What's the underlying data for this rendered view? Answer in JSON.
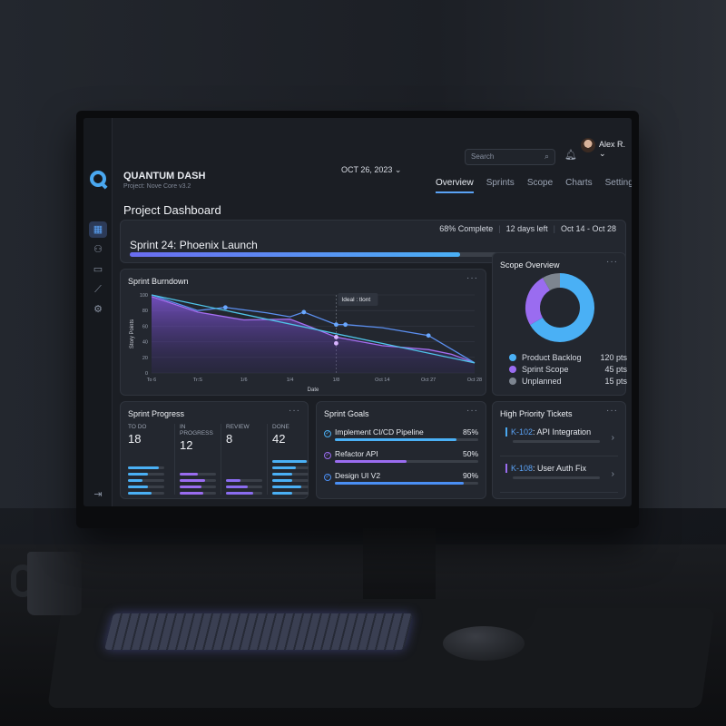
{
  "app": {
    "brand": "QUANTUM DASH",
    "project": "Project: Nove Core v3.2",
    "date": "OCT 26, 2023 ⌄"
  },
  "header": {
    "search_placeholder": "Search",
    "user": "Alex R. ⌄",
    "tabs": [
      {
        "label": "Overview",
        "active": true
      },
      {
        "label": "Sprints"
      },
      {
        "label": "Scope"
      },
      {
        "label": "Charts"
      },
      {
        "label": "Settings"
      }
    ]
  },
  "page_title": "Project Dashboard",
  "sprint": {
    "name": "Sprint 24: Phoenix Launch",
    "complete": "68% Complete",
    "days_left": "12 days left",
    "range": "Oct 14 - Oct 28",
    "progress": 0.68
  },
  "burndown": {
    "title": "Sprint Burndown",
    "more": "···",
    "tooltip": "Ideal : tlont"
  },
  "chart_data": {
    "type": "line",
    "title": "Sprint Burndown",
    "xlabel": "Date",
    "ylabel": "Story Points",
    "categories": [
      "To 6",
      "Tr:S",
      "1/6",
      "1/4",
      "1/8",
      "Oct 14",
      "Oct 27",
      "Oct 28"
    ],
    "y_ticks": [
      0,
      20,
      40,
      60,
      80,
      100
    ],
    "ylim": [
      0,
      100
    ],
    "grid": true,
    "series": [
      {
        "key": "ideal",
        "color": "#4fc3e8",
        "points": [
          [
            0,
            100
          ],
          [
            7,
            13
          ]
        ]
      },
      {
        "key": "actual",
        "color": "#5b8ff0",
        "points": [
          [
            0,
            100
          ],
          [
            1,
            80
          ],
          [
            1.6,
            84
          ],
          [
            2.5,
            77
          ],
          [
            3,
            72
          ],
          [
            3.3,
            78
          ],
          [
            4,
            62
          ],
          [
            4.2,
            62
          ],
          [
            5,
            58
          ],
          [
            6,
            48
          ],
          [
            7,
            13
          ]
        ],
        "markers": [
          [
            1.6,
            84
          ],
          [
            3.3,
            78
          ],
          [
            4,
            62
          ],
          [
            4.2,
            62
          ],
          [
            6,
            48
          ]
        ]
      },
      {
        "key": "scope",
        "color": "#a56ef0",
        "area": true,
        "points": [
          [
            0,
            98
          ],
          [
            1,
            78
          ],
          [
            2,
            68
          ],
          [
            3,
            69
          ],
          [
            3.4,
            60
          ],
          [
            4,
            46
          ],
          [
            5,
            35
          ],
          [
            6,
            30
          ],
          [
            6.5,
            24
          ],
          [
            7,
            13
          ]
        ],
        "markers": [
          [
            4,
            46
          ],
          [
            4,
            38
          ]
        ]
      }
    ]
  },
  "scope": {
    "title": "Scope Overview",
    "more": "···",
    "items": [
      {
        "label": "Product Backlog",
        "value": "120 pts",
        "pts": 120,
        "color": "#4ab0f5"
      },
      {
        "label": "Sprint Scope",
        "value": "45 pts",
        "pts": 45,
        "color": "#9a6cf0"
      },
      {
        "label": "Unplanned",
        "value": "15 pts",
        "pts": 15,
        "color": "#7d8590"
      }
    ]
  },
  "progress": {
    "title": "Sprint Progress",
    "more": "···",
    "columns": [
      {
        "label": "TO DO",
        "count": "18",
        "color": "#4ab0f5",
        "bars": [
          0.85,
          0.55,
          0.4,
          0.55,
          0.65
        ]
      },
      {
        "label": "IN PROGRESS",
        "count": "12",
        "color": "#9a6cf0",
        "bars": [
          0.5,
          0.7,
          0.6,
          0.65
        ]
      },
      {
        "label": "REVIEW",
        "count": "8",
        "color": "#8a6cf0",
        "bars": [
          0.4,
          0.6,
          0.75
        ]
      },
      {
        "label": "DONE",
        "count": "42",
        "color": "#4ab0f5",
        "bars": [
          0.95,
          0.65,
          0.55,
          0.55,
          0.8,
          0.55
        ]
      }
    ]
  },
  "goals": {
    "title": "Sprint Goals",
    "more": "···",
    "items": [
      {
        "label": "Implement CI/CD Pipeline",
        "pct": "85%",
        "value": 0.85,
        "color": "#4ab0f5"
      },
      {
        "label": "Refactor API",
        "pct": "50%",
        "value": 0.5,
        "color": "#9a6cf0"
      },
      {
        "label": "Design UI V2",
        "pct": "90%",
        "value": 0.9,
        "color": "#4a8ff5"
      }
    ]
  },
  "tickets": {
    "title": "High Priority Tickets",
    "more": "···",
    "items": [
      {
        "key": "K-102",
        "label": ": API Integration",
        "color": "#4aa8f0"
      },
      {
        "key": "K-108",
        "label": ": User Auth Fix",
        "color": "#9a6cf0"
      }
    ]
  }
}
